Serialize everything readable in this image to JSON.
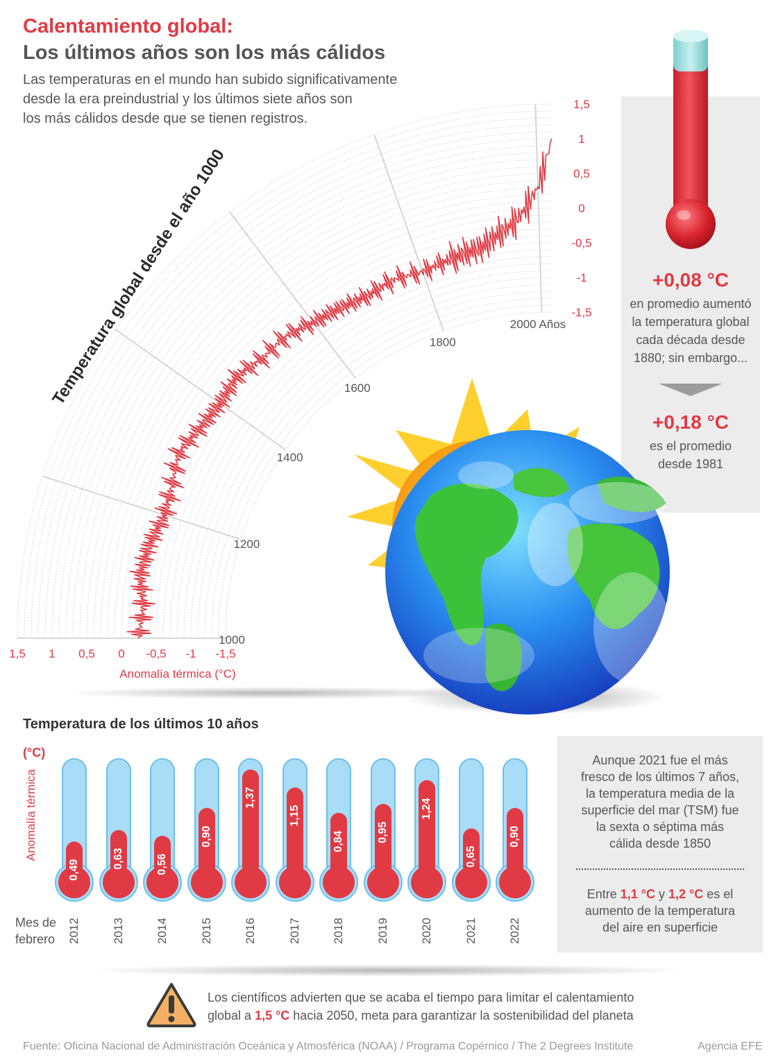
{
  "title": {
    "line1": "Calentamiento global:",
    "line2": "Los últimos años son los más cálidos",
    "intro": [
      "Las temperaturas en el mundo han subido significativamente",
      "desde la era preindustrial y los últimos siete años son",
      "los más cálidos desde que se tienen registros."
    ]
  },
  "colors": {
    "accent": "#e03a44",
    "text": "#555555",
    "panel": "#ececec",
    "tube": "#a9dcf6"
  },
  "stats": {
    "value1": "+0,08 °C",
    "text1": [
      "en promedio aumentó",
      "la temperatura global",
      "cada década desde",
      "1880; sin embargo..."
    ],
    "value2": "+0,18 °C",
    "text2": [
      "es el promedio",
      "desde 1981"
    ]
  },
  "chart_data": [
    {
      "type": "line",
      "title": "Temperatura global desde el año 1000",
      "xlabel": "Anomalía térmica (°C)",
      "year_axis_suffix": "Años",
      "year_ticks": [
        "1000",
        "1200",
        "1400",
        "1600",
        "1800",
        "2000"
      ],
      "anomaly_ticks": [
        "1,5",
        "1",
        "0,5",
        "0",
        "-0,5",
        "-1",
        "-1,5"
      ],
      "anomaly_range": [
        -1.5,
        1.5
      ],
      "year_range": [
        1000,
        2020
      ],
      "grid": true,
      "series": [
        {
          "x": [
            1000,
            1050,
            1100,
            1150,
            1200,
            1250,
            1300,
            1350,
            1400,
            1450,
            1500,
            1550,
            1600,
            1650,
            1700,
            1750,
            1800,
            1850,
            1880,
            1900,
            1920,
            1940,
            1960,
            1980,
            2000,
            2010,
            2020
          ],
          "y": [
            -0.25,
            -0.3,
            -0.2,
            -0.25,
            -0.35,
            -0.3,
            -0.2,
            -0.3,
            -0.35,
            -0.3,
            -0.4,
            -0.4,
            -0.5,
            -0.55,
            -0.6,
            -0.55,
            -0.6,
            -0.55,
            -0.5,
            -0.5,
            -0.4,
            -0.3,
            -0.2,
            0.0,
            0.3,
            0.6,
            1.0
          ]
        }
      ]
    },
    {
      "type": "bar",
      "title": "Temperatura de los últimos 10 años",
      "ylabel": "Anomalía térmica",
      "unit": "(°C)",
      "xlabel": [
        "Mes de",
        "febrero"
      ],
      "categories": [
        "2012",
        "2013",
        "2014",
        "2015",
        "2016",
        "2017",
        "2018",
        "2019",
        "2020",
        "2021",
        "2022"
      ],
      "values": [
        0.49,
        0.63,
        0.56,
        0.9,
        1.37,
        1.15,
        0.84,
        0.95,
        1.24,
        0.65,
        0.9
      ],
      "labels": [
        "0,49",
        "0,63",
        "0,56",
        "0,90",
        "1,37",
        "1,15",
        "0,84",
        "0,95",
        "1,24",
        "0,65",
        "0,90"
      ],
      "ylim": [
        0,
        1.5
      ]
    }
  ],
  "side": {
    "text1": [
      "Aunque 2021 fue el más",
      "fresco de los últimos 7 años,",
      "la temperatura media de la",
      "superficie del mar (TSM) fue",
      "la sexta o séptima más",
      "cálida desde 1850"
    ],
    "text2_pre": "Entre ",
    "text2_v1": "1,1 °C",
    "text2_mid": " y ",
    "text2_v2": "1,2 °C",
    "text2_post1": " es el",
    "text2_rest": [
      "aumento de la temperatura",
      "del aire en superficie"
    ]
  },
  "warning": {
    "line1": "Los científicos advierten que se acaba el tiempo para limitar el calentamiento",
    "line2_pre": "global a ",
    "line2_value": "1,5 °C",
    "line2_post": " hacia 2050, meta para garantizar la sostenibilidad del planeta"
  },
  "footer": {
    "source": "Fuente: Oficina Nacional de Administración Oceánica y Atmosférica (NOAA) / Programa Copérnico / The 2 Degrees Institute",
    "agency": "Agencia EFE"
  }
}
